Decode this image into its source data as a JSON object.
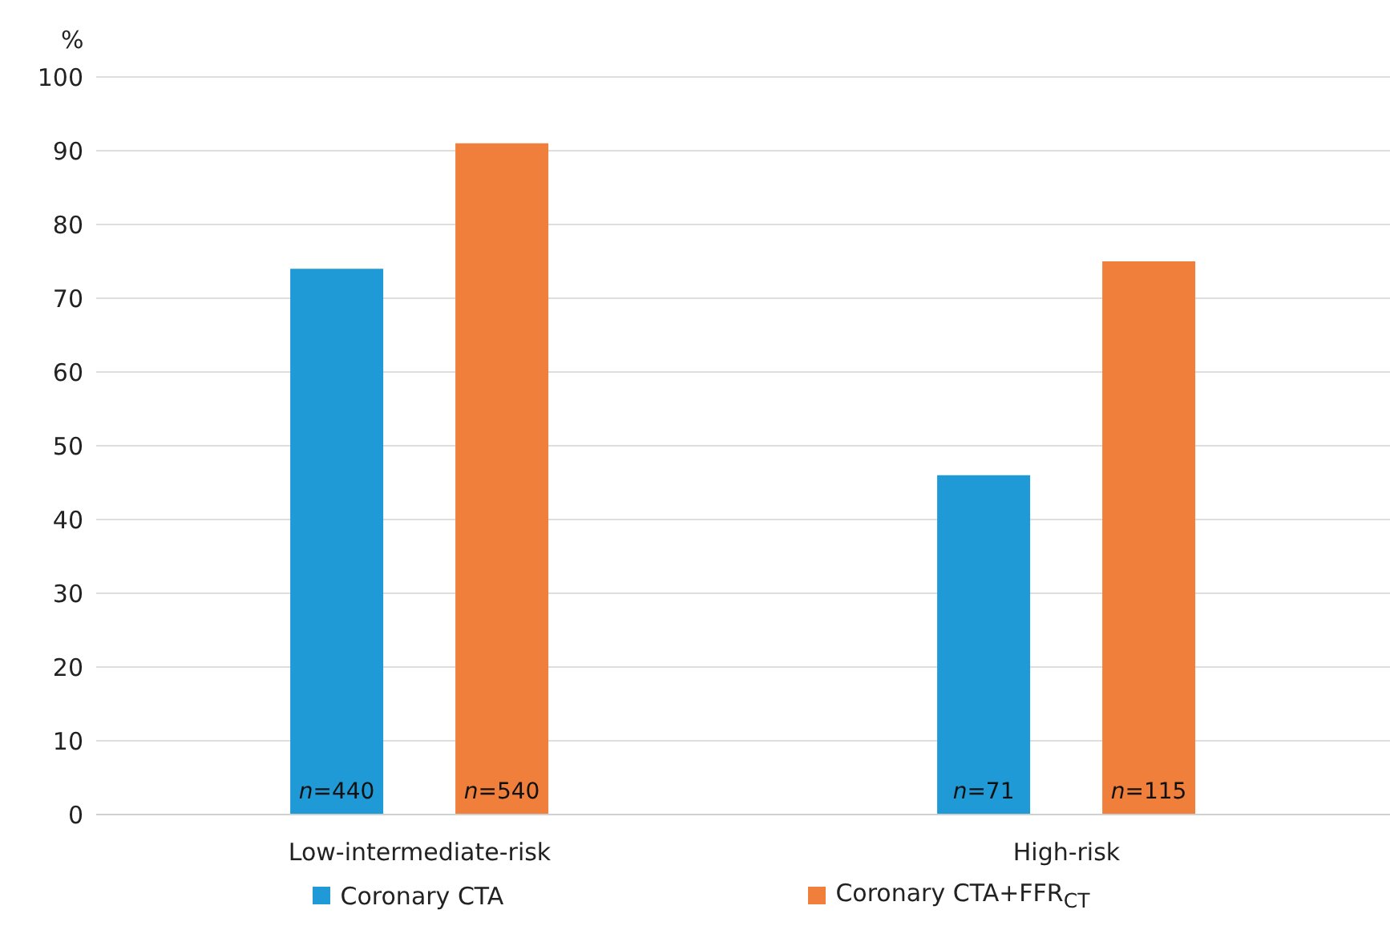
{
  "chart_data": {
    "type": "bar",
    "ylabel": "%",
    "categories": [
      "Low-intermediate-risk",
      "High-risk"
    ],
    "series": [
      {
        "name": "Coronary CTA",
        "color": "#1f9ad6",
        "values": [
          74,
          46
        ]
      },
      {
        "name": "Coronary CTA+FFR$_{CT}$",
        "color": "#f07f3c",
        "values": [
          91,
          75
        ]
      }
    ],
    "annotations": [
      "n=440",
      "n=540",
      "n=71",
      "n=115"
    ],
    "ylim": [
      0,
      100
    ],
    "yticks": [
      0,
      10,
      20,
      30,
      40,
      50,
      60,
      70,
      80,
      90,
      100
    ],
    "grid": "y",
    "legend": "bottom"
  }
}
